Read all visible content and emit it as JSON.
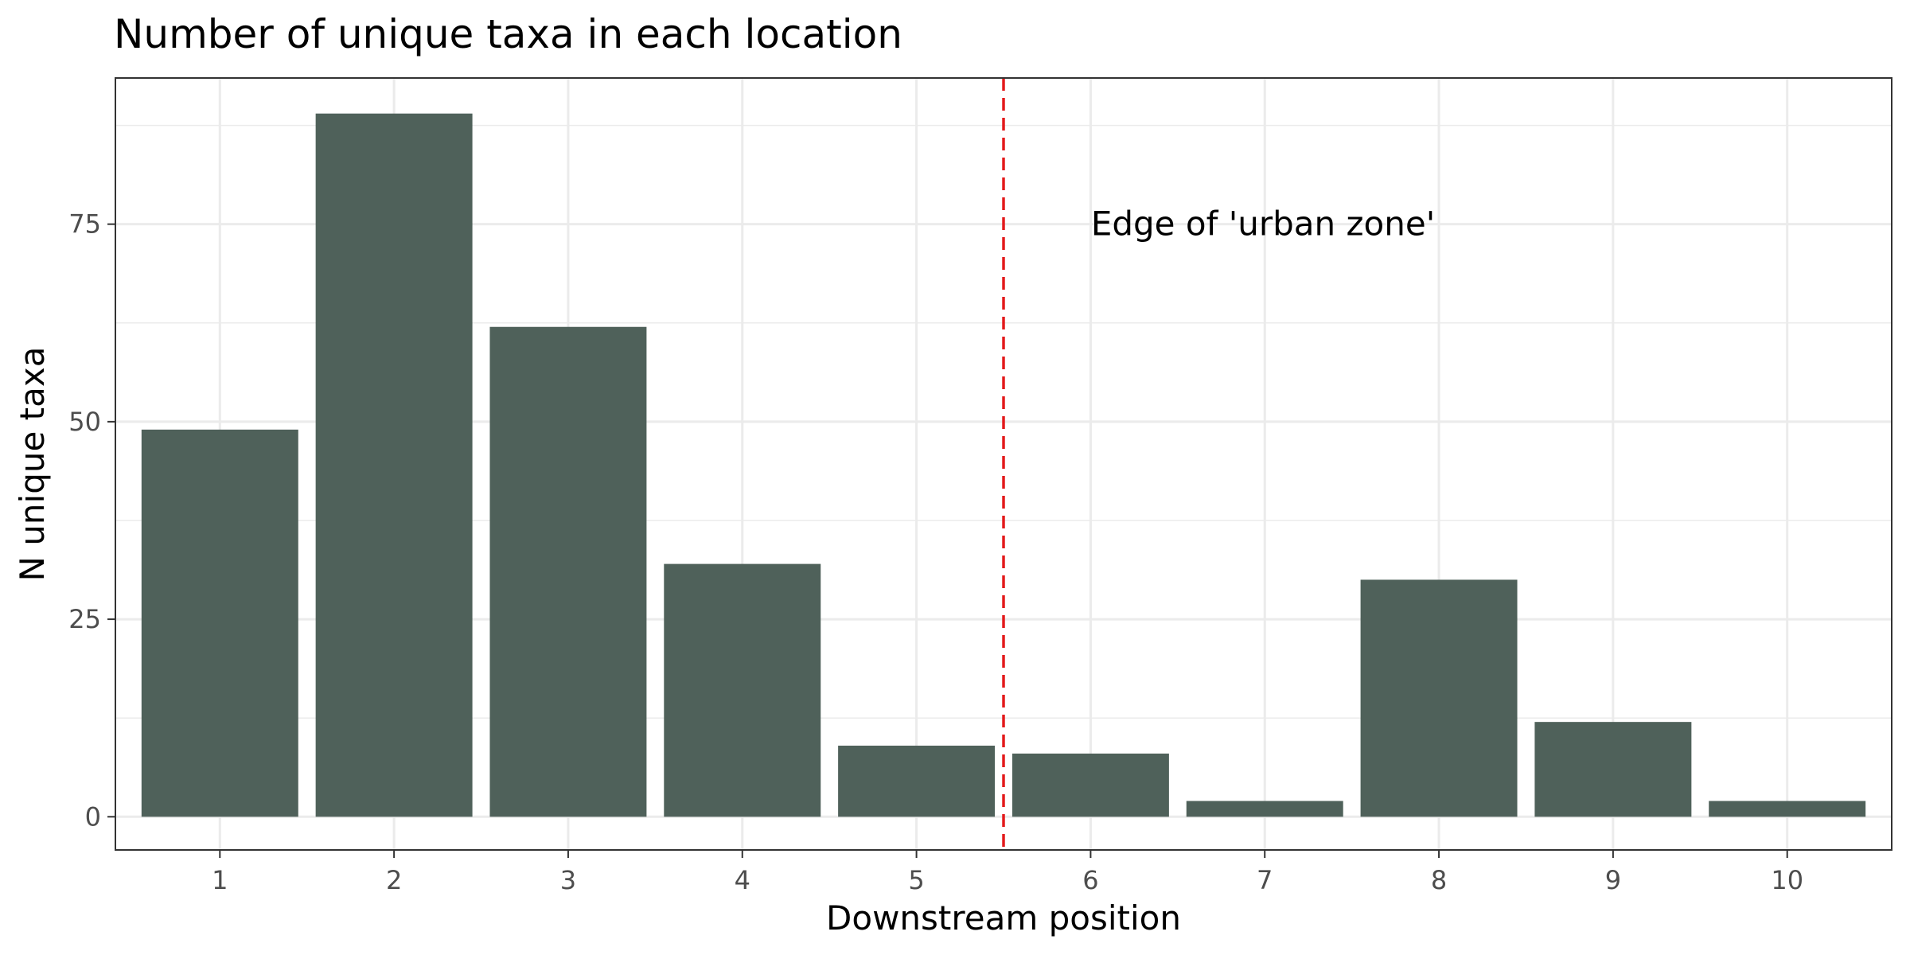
{
  "chart_data": {
    "type": "bar",
    "title": "Number of unique taxa in each location",
    "xlabel": "Downstream position",
    "ylabel": "N unique taxa",
    "categories": [
      "1",
      "2",
      "3",
      "4",
      "5",
      "6",
      "7",
      "8",
      "9",
      "10"
    ],
    "values": [
      49,
      89,
      62,
      32,
      9,
      8,
      2,
      30,
      12,
      2
    ],
    "yticks": [
      0,
      25,
      50,
      75
    ],
    "ylim": [
      -4.2,
      93.5
    ],
    "xlim": [
      0.4,
      10.6
    ],
    "grid": true,
    "bar_color": "#4f615a",
    "reference_line": {
      "x": 5.5,
      "color": "#e31a1c",
      "style": "dashed"
    },
    "annotation": {
      "text": "Edge of 'urban zone'",
      "x": 6.99,
      "y": 75
    }
  }
}
